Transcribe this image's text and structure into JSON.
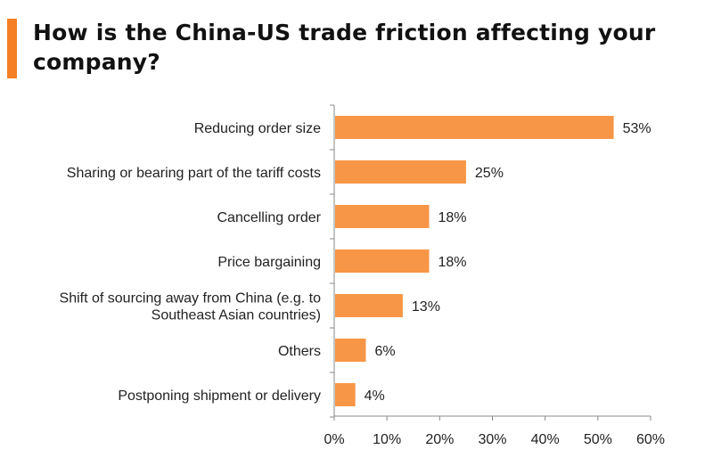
{
  "chart_data": {
    "type": "bar",
    "orientation": "horizontal",
    "title": "How is the China-US trade friction affecting your company?",
    "categories": [
      [
        "Reducing order size"
      ],
      [
        "Sharing or bearing part of the tariff costs"
      ],
      [
        "Cancelling order"
      ],
      [
        "Price bargaining"
      ],
      [
        "Shift of sourcing away from China (e.g. to",
        "Southeast Asian countries)"
      ],
      [
        "Others"
      ],
      [
        "Postponing shipment or delivery"
      ]
    ],
    "values": [
      53,
      25,
      18,
      18,
      13,
      6,
      4
    ],
    "data_labels": [
      "53%",
      "25%",
      "18%",
      "18%",
      "13%",
      "6%",
      "4%"
    ],
    "xlim": [
      0,
      60
    ],
    "xticks": [
      "0%",
      "10%",
      "20%",
      "30%",
      "40%",
      "50%",
      "60%"
    ],
    "xlabel": "",
    "ylabel": "",
    "grid": false,
    "bar_color": "#f79646",
    "accent_color": "#f47f24"
  }
}
